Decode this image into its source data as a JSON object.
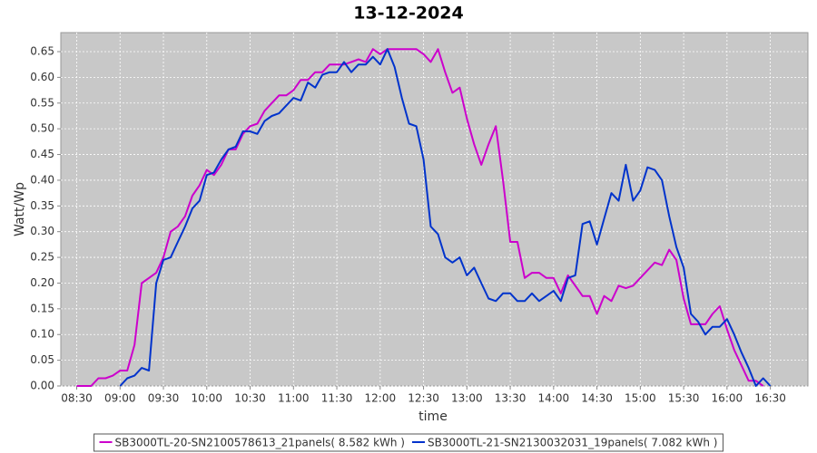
{
  "chart_data": {
    "type": "line",
    "title": "13-12-2024",
    "x_label": "time",
    "y_label": "Watt/Wp",
    "x": [
      "08:30",
      "08:35",
      "08:40",
      "08:45",
      "08:50",
      "08:55",
      "09:00",
      "09:05",
      "09:10",
      "09:15",
      "09:20",
      "09:25",
      "09:30",
      "09:35",
      "09:40",
      "09:45",
      "09:50",
      "09:55",
      "10:00",
      "10:05",
      "10:10",
      "10:15",
      "10:20",
      "10:25",
      "10:30",
      "10:35",
      "10:40",
      "10:45",
      "10:50",
      "10:55",
      "11:00",
      "11:05",
      "11:10",
      "11:15",
      "11:20",
      "11:25",
      "11:30",
      "11:35",
      "11:40",
      "11:45",
      "11:50",
      "11:55",
      "12:00",
      "12:05",
      "12:10",
      "12:15",
      "12:20",
      "12:25",
      "12:30",
      "12:35",
      "12:40",
      "12:45",
      "12:50",
      "12:55",
      "13:00",
      "13:05",
      "13:10",
      "13:15",
      "13:20",
      "13:25",
      "13:30",
      "13:35",
      "13:40",
      "13:45",
      "13:50",
      "13:55",
      "14:00",
      "14:05",
      "14:10",
      "14:15",
      "14:20",
      "14:25",
      "14:30",
      "14:35",
      "14:40",
      "14:45",
      "14:50",
      "14:55",
      "15:00",
      "15:05",
      "15:10",
      "15:15",
      "15:20",
      "15:25",
      "15:30",
      "15:35",
      "15:40",
      "15:45",
      "15:50",
      "15:55",
      "16:00",
      "16:05",
      "16:10",
      "16:15",
      "16:20",
      "16:25",
      "16:30"
    ],
    "series": [
      {
        "name": "SB3000TL-20-SN2100578613_21panels( 8.582 kWh )",
        "color": "#cc00cc",
        "values": [
          0.0,
          0.0,
          0.0,
          0.015,
          0.015,
          0.02,
          0.03,
          0.03,
          0.08,
          0.2,
          0.21,
          0.22,
          0.25,
          0.3,
          0.31,
          0.33,
          0.37,
          0.39,
          0.42,
          0.41,
          0.43,
          0.46,
          0.46,
          0.49,
          0.505,
          0.51,
          0.535,
          0.55,
          0.565,
          0.565,
          0.575,
          0.595,
          0.595,
          0.61,
          0.61,
          0.625,
          0.625,
          0.625,
          0.63,
          0.635,
          0.63,
          0.655,
          0.645,
          0.655,
          0.655,
          0.655,
          0.655,
          0.655,
          0.645,
          0.63,
          0.655,
          0.61,
          0.57,
          0.58,
          0.52,
          0.47,
          0.43,
          0.47,
          0.505,
          0.4,
          0.28,
          0.28,
          0.21,
          0.22,
          0.22,
          0.21,
          0.21,
          0.18,
          0.215,
          0.195,
          0.175,
          0.175,
          0.14,
          0.175,
          0.165,
          0.195,
          0.19,
          0.195,
          0.21,
          0.225,
          0.24,
          0.235,
          0.265,
          0.245,
          0.17,
          0.12,
          0.12,
          0.12,
          0.14,
          0.155,
          0.11,
          0.07,
          0.04,
          0.01,
          0.01,
          0.0,
          null
        ]
      },
      {
        "name": "SB3000TL-21-SN2130032031_19panels( 7.082 kWh )",
        "color": "#0033cc",
        "values": [
          null,
          null,
          null,
          null,
          null,
          null,
          0.0,
          0.015,
          0.02,
          0.035,
          0.03,
          0.2,
          0.245,
          0.25,
          0.28,
          0.31,
          0.345,
          0.36,
          0.41,
          0.415,
          0.44,
          0.46,
          0.465,
          0.495,
          0.495,
          0.49,
          0.515,
          0.525,
          0.53,
          0.545,
          0.56,
          0.555,
          0.59,
          0.58,
          0.605,
          0.61,
          0.61,
          0.63,
          0.61,
          0.625,
          0.625,
          0.64,
          0.625,
          0.655,
          0.62,
          0.56,
          0.51,
          0.505,
          0.44,
          0.31,
          0.295,
          0.25,
          0.24,
          0.25,
          0.215,
          0.23,
          0.2,
          0.17,
          0.165,
          0.18,
          0.18,
          0.165,
          0.165,
          0.18,
          0.165,
          0.175,
          0.185,
          0.165,
          0.21,
          0.215,
          0.315,
          0.32,
          0.275,
          0.325,
          0.375,
          0.36,
          0.43,
          0.36,
          0.38,
          0.425,
          0.42,
          0.4,
          0.33,
          0.27,
          0.23,
          0.14,
          0.125,
          0.1,
          0.115,
          0.115,
          0.13,
          0.1,
          0.065,
          0.035,
          0.0,
          0.015,
          0.0
        ]
      }
    ],
    "xlim": [
      "08:19",
      "16:56"
    ],
    "xticks": [
      "08:30",
      "09:00",
      "09:30",
      "10:00",
      "10:30",
      "11:00",
      "11:30",
      "12:00",
      "12:30",
      "13:00",
      "13:30",
      "14:00",
      "14:30",
      "15:00",
      "15:30",
      "16:00",
      "16:30"
    ],
    "ylim": [
      0,
      0.687
    ],
    "yticks": [
      {
        "value": 0,
        "label": "0.00"
      },
      {
        "value": 0.05,
        "label": "0.05"
      },
      {
        "value": 0.1,
        "label": "0.10"
      },
      {
        "value": 0.15,
        "label": "0.15"
      },
      {
        "value": 0.2,
        "label": "0.20"
      },
      {
        "value": 0.25,
        "label": "0.25"
      },
      {
        "value": 0.3,
        "label": "0.30"
      },
      {
        "value": 0.35,
        "label": "0.35"
      },
      {
        "value": 0.4,
        "label": "0.40"
      },
      {
        "value": 0.45,
        "label": "0.45"
      },
      {
        "value": 0.5,
        "label": "0.50"
      },
      {
        "value": 0.55,
        "label": "0.55"
      },
      {
        "value": 0.6,
        "label": "0.60"
      },
      {
        "value": 0.65,
        "label": "0.65"
      }
    ],
    "grid": true,
    "legend": "bottom",
    "background": "#c8c8c8"
  }
}
